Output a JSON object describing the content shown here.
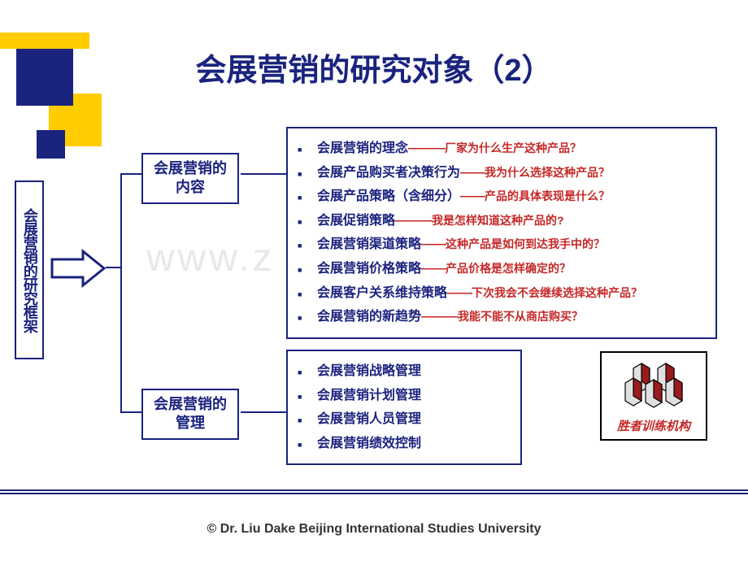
{
  "title": "会展营销的研究对象（2）",
  "watermark": "www.z       m",
  "root": "会展营销的研究框架",
  "mid1": "会展营销的内容",
  "mid2": "会展营销的管理",
  "box1_items": [
    {
      "main": "会展营销的理念",
      "dash": "———",
      "q": "厂家为什么生产这种产品？"
    },
    {
      "main": "会展产品购买者决策行为",
      "dash": "——",
      "q": "我为什么选择这种产品？"
    },
    {
      "main": "会展产品策略（含细分）",
      "dash": "——",
      "q": "产品的具体表现是什么？"
    },
    {
      "main": "会展促销策略",
      "dash": "———",
      "q": "我是怎样知道这种产品的?"
    },
    {
      "main": "会展营销渠道策略",
      "dash": "——",
      "q": "这种产品是如何到达我手中的？"
    },
    {
      "main": "会展营销价格策略",
      "dash": "——",
      "q": "产品价格是怎样确定的？"
    },
    {
      "main": "会展客户关系维持策略",
      "dash": "——",
      "q": "下次我会不会继续选择这种产品？"
    },
    {
      "main": "会展营销的新趋势",
      "dash": "———",
      "q": "我能不能不从商店购买？"
    }
  ],
  "box2_items": [
    "会展营销战略管理",
    "会展营销计划管理",
    "会展营销人员管理",
    "会展营销绩效控制"
  ],
  "logo_text": "胜者训练机构",
  "footer": "©  Dr. Liu Dake  Beijing International Studies University",
  "colors": {
    "blue": "#1a237e",
    "yellow": "#ffcc00",
    "red": "#c62828"
  }
}
